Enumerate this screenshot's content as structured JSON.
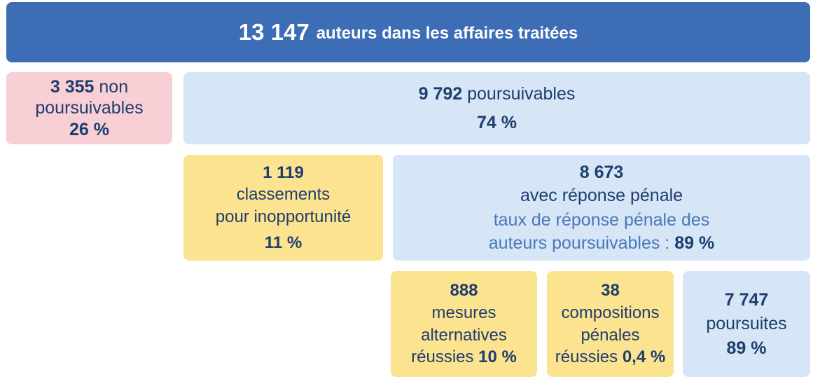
{
  "header": {
    "count": "13 147",
    "label": "auteurs dans les affaires traitées"
  },
  "non_poursuivables": {
    "count": "3 355",
    "label_1": "non",
    "label_2": "poursuivables",
    "pct": "26 %"
  },
  "poursuivables": {
    "count": "9 792",
    "label": "poursuivables",
    "pct": "74 %"
  },
  "classements": {
    "count": "1 119",
    "label_1": "classements",
    "label_2": "pour inopportunité",
    "pct": "11 %"
  },
  "reponse_penale": {
    "count": "8 673",
    "label": "avec réponse pénale",
    "taux_line_1": "taux de réponse pénale des",
    "taux_line_2": "auteurs poursuivables :",
    "taux_pct": "89 %"
  },
  "mesures": {
    "count": "888",
    "label_1": "mesures",
    "label_2": "alternatives",
    "label_3": "réussies",
    "pct": "10 %"
  },
  "compositions": {
    "count": "38",
    "label_1": "compositions",
    "label_2": "pénales",
    "label_3": "réussies",
    "pct": "0,4 %"
  },
  "poursuites": {
    "count": "7 747",
    "label": "poursuites",
    "pct": "89 %"
  },
  "colors": {
    "header_bg": "#3c6db5",
    "non_poursuivables_bg": "#f7cfd5",
    "light_blue_bg": "#d6e6f6",
    "yellow_bg": "#fce390",
    "text_dark_blue": "#1f3d6e",
    "text_mid_blue": "#4a78b8"
  }
}
